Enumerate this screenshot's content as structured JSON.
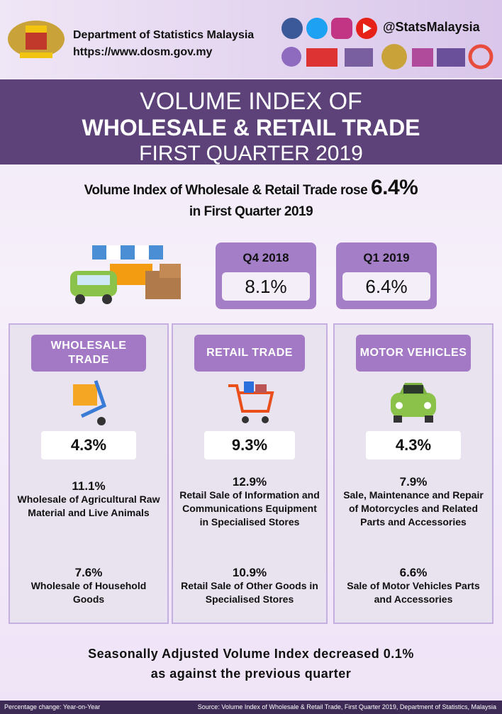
{
  "header": {
    "org": "Department of Statistics Malaysia",
    "url": "https://www.dosm.gov.my",
    "handle": "@StatsMalaysia"
  },
  "title": {
    "line1": "VOLUME INDEX OF",
    "line2": "WHOLESALE & RETAIL TRADE",
    "line3": "FIRST QUARTER 2019"
  },
  "headline": {
    "text": "Volume Index of Wholesale & Retail Trade rose",
    "value": "6.4%",
    "period": "in First Quarter 2019"
  },
  "quarters": [
    {
      "label": "Q4 2018",
      "value": "8.1%"
    },
    {
      "label": "Q1 2019",
      "value": "6.4%"
    }
  ],
  "sectors": [
    {
      "name": "WHOLESALE TRADE",
      "value": "4.3%",
      "items": [
        {
          "value": "11.1%",
          "label": "Wholesale of Agricultural Raw Material and Live Animals"
        },
        {
          "value": "7.6%",
          "label": "Wholesale of Household Goods"
        }
      ]
    },
    {
      "name": "RETAIL TRADE",
      "value": "9.3%",
      "items": [
        {
          "value": "12.9%",
          "label": "Retail Sale of Information and Communications Equipment in Specialised Stores"
        },
        {
          "value": "10.9%",
          "label": "Retail Sale of Other Goods in Specialised Stores"
        }
      ]
    },
    {
      "name": "MOTOR VEHICLES",
      "value": "4.3%",
      "items": [
        {
          "value": "7.9%",
          "label": "Sale, Maintenance and Repair of Motorcycles and Related Parts and Accessories"
        },
        {
          "value": "6.6%",
          "label": "Sale of Motor Vehicles Parts and Accessories"
        }
      ]
    }
  ],
  "note": {
    "line1": "Seasonally Adjusted Volume Index decreased 0.1%",
    "line2": "as against the previous quarter"
  },
  "footer": {
    "left": "Percentage change: Year-on-Year",
    "right": "Source: Volume Index of Wholesale & Retail Trade, First Quarter 2019, Department of Statistics, Malaysia"
  }
}
